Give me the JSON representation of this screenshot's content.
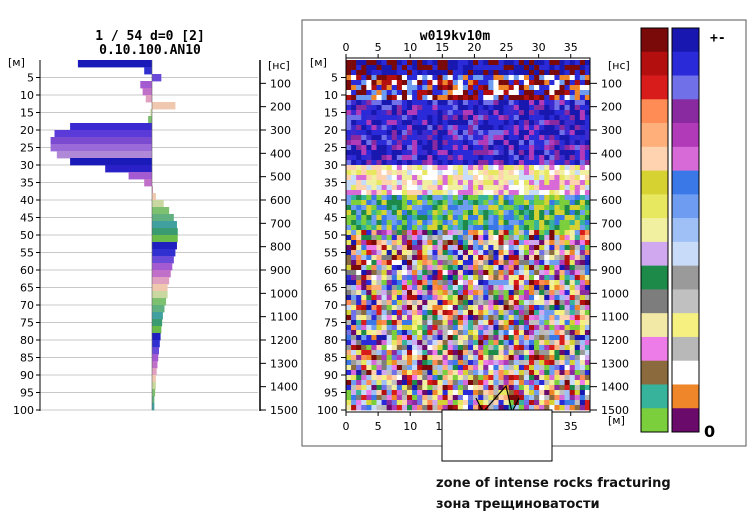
{
  "left_panel": {
    "title_line1": "1 / 54  d=0  [2]",
    "title_line2": "0.10.100.AN10",
    "unit_depth": "[м]",
    "unit_time": "[нс]"
  },
  "right_panel": {
    "title": "w019kv10m",
    "unit_depth": "[м]",
    "unit_time": "[нс]",
    "unit_x": "[м]"
  },
  "palette": {
    "sign_label": "+-",
    "zero_label": "0",
    "left_column": [
      "#7a0a0a",
      "#b30f0f",
      "#d81c1c",
      "#ff8c55",
      "#ffb07a",
      "#ffd2b0",
      "#d6d232",
      "#e8e860",
      "#f0f0a0",
      "#cfa8f0",
      "#1e8a4a",
      "#7d7d7d",
      "#f2e9a6",
      "#ee7ce8",
      "#8b6b3d",
      "#36b39a",
      "#7ccf3c"
    ],
    "right_column": [
      "#1818b0",
      "#2a2ad8",
      "#7070e8",
      "#8a2aa0",
      "#b03ab8",
      "#d86ad8",
      "#3a78e8",
      "#6e9cf0",
      "#9ec0f6",
      "#c8dcfa",
      "#9a9a9a",
      "#c0c0c0",
      "#f6f080",
      "#b8b8b8",
      "#ffffff",
      "#f0862a",
      "#6a0a6a"
    ]
  },
  "annotation": {
    "line1": "zone of intense rocks fracturing",
    "line2": "зона трещиноватости"
  },
  "chart_data": [
    {
      "type": "area",
      "description_source": "single trace amplitude vs depth",
      "ylabel": "[м]",
      "y_ticks": [
        5,
        10,
        15,
        20,
        25,
        30,
        35,
        40,
        45,
        50,
        55,
        60,
        65,
        70,
        75,
        80,
        85,
        90,
        95,
        100
      ],
      "time_ticks": [
        100,
        200,
        300,
        400,
        500,
        600,
        700,
        800,
        900,
        1000,
        1100,
        1200,
        1300,
        1400,
        1500
      ],
      "ylim": [
        0,
        100
      ],
      "depth": [
        0,
        2,
        4,
        6,
        8,
        10,
        12,
        14,
        16,
        18,
        20,
        22,
        24,
        26,
        28,
        30,
        32,
        34,
        36,
        38,
        40,
        42,
        44,
        46,
        48,
        50,
        52,
        54,
        56,
        58,
        60,
        62,
        64,
        66,
        68,
        70,
        72,
        74,
        76,
        78,
        80,
        82,
        84,
        86,
        88,
        90,
        92,
        94,
        96,
        98,
        100
      ],
      "amplitude": [
        -0.95,
        -0.1,
        0.12,
        -0.15,
        -0.12,
        -0.08,
        0.3,
        -0.02,
        -0.05,
        -1.05,
        -1.25,
        -1.3,
        -1.3,
        -1.22,
        -1.05,
        -0.6,
        -0.3,
        -0.1,
        0.0,
        0.05,
        0.15,
        0.22,
        0.28,
        0.32,
        0.33,
        0.33,
        0.32,
        0.3,
        0.28,
        0.26,
        0.24,
        0.22,
        0.2,
        0.2,
        0.18,
        0.16,
        0.14,
        0.13,
        0.12,
        0.11,
        0.1,
        0.09,
        0.08,
        0.07,
        0.06,
        0.05,
        0.05,
        0.04,
        0.03,
        0.03,
        0.02
      ]
    },
    {
      "type": "heatmap",
      "title": "w019kv10m",
      "x_ticks": [
        0,
        5,
        10,
        15,
        20,
        25,
        30,
        35
      ],
      "y_ticks": [
        5,
        10,
        15,
        20,
        25,
        30,
        35,
        40,
        45,
        50,
        55,
        60,
        65,
        70,
        75,
        80,
        85,
        90,
        95,
        100
      ],
      "time_ticks": [
        100,
        200,
        300,
        400,
        500,
        600,
        700,
        800,
        900,
        1000,
        1100,
        1200,
        1300,
        1400,
        1500
      ],
      "xlim": [
        0,
        38
      ],
      "ylim": [
        0,
        100
      ]
    }
  ]
}
